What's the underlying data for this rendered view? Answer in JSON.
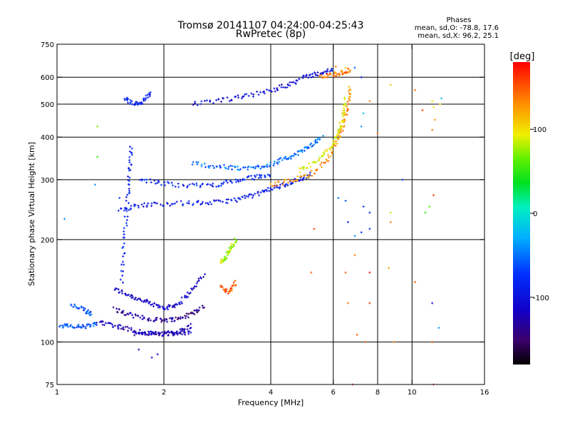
{
  "title_line1": "Tromsø 20141107 04:24:00-04:25:43",
  "title_line2": "RwPretec (8p)",
  "stats": {
    "heading": "Phases",
    "o_line": "mean, sd,O: -78.8, 17.6",
    "x_line": "mean, sd,X:  96.2, 25.1"
  },
  "chart_data": {
    "type": "scatter",
    "title": "Tromsø 20141107 04:24:00-04:25:43",
    "subtitle": "RwPretec (8p)",
    "xlabel": "Frequency [MHz]",
    "ylabel": "Stationary phase Virtual Height [km]",
    "x_scale": "log",
    "y_scale": "log",
    "xlim": [
      1,
      16
    ],
    "ylim": [
      75,
      750
    ],
    "x_ticks": [
      1,
      2,
      4,
      6,
      8,
      10,
      16
    ],
    "x_tick_labels": [
      "1",
      "2",
      "4",
      "6",
      "8",
      "10",
      "16"
    ],
    "x_grid": [
      2,
      4,
      6,
      8,
      10
    ],
    "y_ticks": [
      75,
      100,
      200,
      300,
      400,
      500,
      600,
      750
    ],
    "y_tick_labels": [
      "75",
      "100",
      "200",
      "300",
      "400",
      "500",
      "600",
      "750"
    ],
    "y_grid": [
      100,
      200,
      300,
      400,
      500,
      600
    ],
    "grid": true,
    "colorbar": {
      "label": "[deg]",
      "range": [
        -180,
        180
      ],
      "ticks": [
        100,
        0,
        -100
      ],
      "tick_labels": [
        "100",
        "0",
        "-100"
      ],
      "colormap": "rainbow"
    },
    "traces": [
      {
        "f": [
          1.45,
          1.6,
          1.75,
          1.9,
          2.05,
          2.2,
          2.4,
          2.6
        ],
        "h": [
          143,
          137,
          132,
          128,
          126,
          130,
          142,
          158
        ],
        "phase": -115
      },
      {
        "f": [
          1.3,
          1.45,
          1.6,
          1.8,
          2.0,
          2.2,
          2.4
        ],
        "h": [
          115,
          112,
          109,
          106,
          105,
          107,
          112
        ],
        "phase": -120
      },
      {
        "f": [
          1.45,
          1.6,
          1.8,
          2.0,
          2.2,
          2.4,
          2.6
        ],
        "h": [
          125,
          120,
          117,
          116,
          117,
          121,
          128
        ],
        "phase": -135
      },
      {
        "f": [
          1.65,
          1.8,
          2.0,
          2.2,
          2.4
        ],
        "h": [
          106,
          106,
          106,
          106,
          107
        ],
        "phase": -120
      },
      {
        "f": [
          1.02,
          1.1,
          1.2,
          1.3
        ],
        "h": [
          112,
          111,
          111,
          113
        ],
        "phase": -60
      },
      {
        "f": [
          1.1,
          1.2,
          1.25
        ],
        "h": [
          128,
          124,
          121
        ],
        "phase": -65
      },
      {
        "f": [
          1.5,
          1.7,
          2.0,
          2.4,
          2.8,
          3.2,
          3.6,
          4.0,
          4.4,
          4.8,
          5.2
        ],
        "h": [
          245,
          252,
          255,
          256,
          257,
          262,
          270,
          282,
          290,
          300,
          312
        ],
        "phase": -95
      },
      {
        "f": [
          1.7,
          2.0,
          2.4,
          2.8,
          3.2,
          3.6,
          4.0
        ],
        "h": [
          300,
          292,
          288,
          290,
          298,
          305,
          310
        ],
        "phase": -85
      },
      {
        "f": [
          2.4,
          2.8,
          3.2,
          3.6,
          4.0,
          4.4,
          4.8,
          5.2,
          5.6
        ],
        "h": [
          335,
          328,
          324,
          325,
          333,
          345,
          360,
          378,
          400
        ],
        "phase": -55
      },
      {
        "f": [
          4.0,
          4.6,
          5.2,
          5.8,
          6.2,
          6.4,
          6.6,
          6.7
        ],
        "h": [
          290,
          298,
          312,
          345,
          390,
          440,
          500,
          560
        ],
        "phase": 130
      },
      {
        "f": [
          4.8,
          5.4,
          5.9,
          6.2,
          6.4,
          6.5
        ],
        "h": [
          318,
          340,
          372,
          410,
          460,
          520
        ],
        "phase": 95
      },
      {
        "f": [
          2.4,
          2.9,
          3.4,
          4.0,
          4.5,
          5.0,
          5.5,
          6.0
        ],
        "h": [
          500,
          512,
          528,
          548,
          572,
          600,
          618,
          630
        ],
        "phase": -105
      },
      {
        "f": [
          5.5,
          6.0,
          6.4,
          6.7
        ],
        "h": [
          600,
          610,
          620,
          630
        ],
        "phase": 140
      },
      {
        "f": [
          1.55,
          1.65,
          1.75,
          1.85
        ],
        "h": [
          520,
          500,
          510,
          540
        ],
        "phase": -90
      },
      {
        "f": [
          1.52,
          1.55,
          1.58,
          1.6,
          1.62
        ],
        "h": [
          150,
          200,
          260,
          320,
          380
        ],
        "phase": -90
      },
      {
        "f": [
          2.9,
          3.0,
          3.1,
          3.2
        ],
        "h": [
          170,
          180,
          190,
          200
        ],
        "phase": 80
      },
      {
        "f": [
          2.9,
          3.05,
          3.2
        ],
        "h": [
          145,
          140,
          150
        ],
        "phase": 150
      }
    ],
    "scatter_points": [
      [
        1.3,
        430,
        70
      ],
      [
        1.3,
        350,
        50
      ],
      [
        1.28,
        290,
        -40
      ],
      [
        1.5,
        265,
        -70
      ],
      [
        1.05,
        230,
        -40
      ],
      [
        1.85,
        90,
        -110
      ],
      [
        1.7,
        95,
        -120
      ],
      [
        1.92,
        92,
        -110
      ],
      [
        6.5,
        640,
        110
      ],
      [
        6.1,
        645,
        140
      ],
      [
        6.9,
        640,
        -60
      ],
      [
        7.2,
        600,
        -100
      ],
      [
        8.7,
        570,
        110
      ],
      [
        7.6,
        510,
        130
      ],
      [
        7.3,
        470,
        -20
      ],
      [
        7.2,
        430,
        -40
      ],
      [
        8.0,
        410,
        150
      ],
      [
        10.2,
        550,
        140
      ],
      [
        10.7,
        480,
        160
      ],
      [
        11.4,
        510,
        100
      ],
      [
        11.5,
        490,
        100
      ],
      [
        11.6,
        450,
        130
      ],
      [
        11.4,
        420,
        140
      ],
      [
        12.1,
        520,
        -20
      ],
      [
        12.0,
        500,
        110
      ],
      [
        9.4,
        300,
        -80
      ],
      [
        11.5,
        270,
        160
      ],
      [
        11.2,
        250,
        60
      ],
      [
        10.9,
        240,
        50
      ],
      [
        8.7,
        240,
        80
      ],
      [
        8.7,
        225,
        140
      ],
      [
        7.3,
        250,
        -80
      ],
      [
        7.6,
        240,
        -90
      ],
      [
        7.6,
        215,
        -80
      ],
      [
        7.2,
        210,
        -80
      ],
      [
        6.2,
        265,
        -50
      ],
      [
        6.5,
        260,
        -60
      ],
      [
        6.6,
        225,
        -100
      ],
      [
        6.9,
        205,
        -40
      ],
      [
        5.3,
        215,
        160
      ],
      [
        6.9,
        180,
        140
      ],
      [
        5.2,
        160,
        150
      ],
      [
        7.6,
        160,
        170
      ],
      [
        8.6,
        165,
        120
      ],
      [
        6.5,
        160,
        150
      ],
      [
        6.6,
        130,
        140
      ],
      [
        7.6,
        130,
        160
      ],
      [
        10.2,
        150,
        150
      ],
      [
        11.4,
        130,
        -100
      ],
      [
        11.9,
        110,
        -40
      ],
      [
        11.4,
        100,
        150
      ],
      [
        11.5,
        75,
        170
      ],
      [
        7.0,
        105,
        150
      ],
      [
        7.4,
        100,
        150
      ],
      [
        8.9,
        100,
        140
      ],
      [
        6.8,
        75,
        170
      ]
    ]
  }
}
